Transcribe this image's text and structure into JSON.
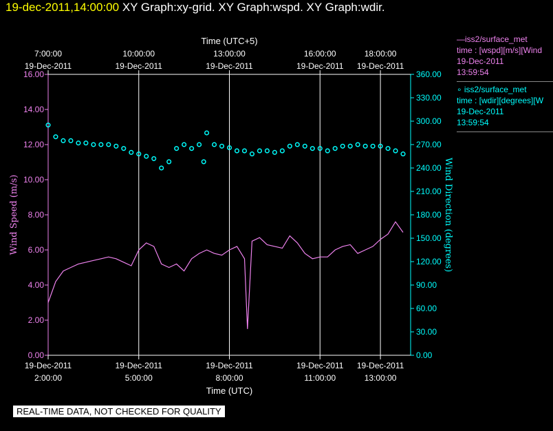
{
  "header": {
    "datetime": "19-dec-2011,14:00:00",
    "graphs": "  XY Graph:xy-grid.  XY Graph:wspd.  XY Graph:wdir."
  },
  "legend": {
    "series1": {
      "line1": "—iss2/surface_met",
      "line2": "time : [wspd][m/s][Wind",
      "line3": "19-Dec-2011",
      "line4": "13:59:54"
    },
    "series2": {
      "line1": "∘ iss2/surface_met",
      "line2": "time : [wdir][degrees][W",
      "line3": "19-Dec-2011",
      "line4": "13:59:54"
    }
  },
  "disclaimer": "REAL-TIME DATA, NOT CHECKED FOR QUALITY",
  "colors": {
    "wspd": "#ee82ee",
    "wdir": "#00ffff",
    "grid": "#ffffff"
  },
  "chart_data": {
    "type": "line",
    "xlabel": "Time (UTC)",
    "x2label": "Time (UTC+5)",
    "ylabel": "Wind Speed (m/s)",
    "y2label": "Wind Direction (degrees)",
    "xlim_hours": [
      2.0,
      14.0
    ],
    "ylim": [
      0,
      16
    ],
    "y2lim": [
      0,
      360
    ],
    "yticks": [
      "0.00",
      "2.00",
      "4.00",
      "6.00",
      "8.00",
      "10.00",
      "12.00",
      "14.00",
      "16.00"
    ],
    "y2ticks": [
      "0.00",
      "30.00",
      "60.00",
      "90.00",
      "120.00",
      "150.00",
      "180.00",
      "210.00",
      "240.00",
      "270.00",
      "300.00",
      "330.00",
      "360.00"
    ],
    "bottom_ticks": [
      {
        "hour": 2.0,
        "date": "19-Dec-2011",
        "time": "2:00:00"
      },
      {
        "hour": 5.0,
        "date": "19-Dec-2011",
        "time": "5:00:00"
      },
      {
        "hour": 8.0,
        "date": "19-Dec-2011",
        "time": "8:00:00"
      },
      {
        "hour": 11.0,
        "date": "19-Dec-2011",
        "time": "11:00:00"
      },
      {
        "hour": 13.0,
        "date": "19-Dec-2011",
        "time": "13:00:00"
      }
    ],
    "top_ticks": [
      {
        "hour": 2.0,
        "time": "7:00:00",
        "date": "19-Dec-2011"
      },
      {
        "hour": 5.0,
        "time": "10:00:00",
        "date": "19-Dec-2011"
      },
      {
        "hour": 8.0,
        "time": "13:00:00",
        "date": "19-Dec-2011"
      },
      {
        "hour": 11.0,
        "time": "16:00:00",
        "date": "19-Dec-2011"
      },
      {
        "hour": 13.0,
        "time": "18:00:00",
        "date": "19-Dec-2011"
      }
    ],
    "series": [
      {
        "name": "iss2/surface_met wspd",
        "axis": "left",
        "style": "line",
        "x_hours": [
          2.0,
          2.25,
          2.5,
          2.75,
          3.0,
          3.25,
          3.5,
          3.75,
          4.0,
          4.25,
          4.5,
          4.75,
          5.0,
          5.25,
          5.5,
          5.75,
          6.0,
          6.25,
          6.5,
          6.75,
          7.0,
          7.25,
          7.5,
          7.75,
          8.0,
          8.25,
          8.5,
          8.6,
          8.75,
          9.0,
          9.25,
          9.5,
          9.75,
          10.0,
          10.25,
          10.5,
          10.75,
          11.0,
          11.25,
          11.5,
          11.75,
          12.0,
          12.25,
          12.5,
          12.75,
          13.0,
          13.25,
          13.5,
          13.75
        ],
        "values": [
          3.0,
          4.2,
          4.8,
          5.0,
          5.2,
          5.3,
          5.4,
          5.5,
          5.6,
          5.5,
          5.3,
          5.1,
          6.0,
          6.4,
          6.2,
          5.2,
          5.0,
          5.2,
          4.8,
          5.5,
          5.8,
          6.0,
          5.8,
          5.7,
          6.0,
          6.2,
          5.5,
          1.5,
          6.5,
          6.7,
          6.3,
          6.2,
          6.1,
          6.8,
          6.4,
          5.8,
          5.5,
          5.6,
          5.6,
          6.0,
          6.2,
          6.3,
          5.8,
          6.0,
          6.2,
          6.6,
          6.9,
          7.6,
          7.0
        ]
      },
      {
        "name": "iss2/surface_met wdir",
        "axis": "right",
        "style": "points",
        "x_hours": [
          2.0,
          2.25,
          2.5,
          2.75,
          3.0,
          3.25,
          3.5,
          3.75,
          4.0,
          4.25,
          4.5,
          4.75,
          5.0,
          5.25,
          5.5,
          5.75,
          6.0,
          6.25,
          6.5,
          6.75,
          7.0,
          7.15,
          7.25,
          7.5,
          7.75,
          8.0,
          8.25,
          8.5,
          8.75,
          9.0,
          9.25,
          9.5,
          9.75,
          10.0,
          10.25,
          10.5,
          10.75,
          11.0,
          11.25,
          11.5,
          11.75,
          12.0,
          12.25,
          12.5,
          12.75,
          13.0,
          13.25,
          13.5,
          13.75
        ],
        "values": [
          295,
          280,
          275,
          275,
          272,
          272,
          270,
          270,
          270,
          268,
          265,
          260,
          258,
          255,
          252,
          240,
          248,
          265,
          270,
          265,
          270,
          248,
          285,
          270,
          268,
          266,
          262,
          262,
          258,
          262,
          262,
          260,
          262,
          268,
          270,
          268,
          265,
          265,
          262,
          265,
          268,
          268,
          270,
          268,
          268,
          268,
          265,
          262,
          258
        ]
      }
    ]
  }
}
